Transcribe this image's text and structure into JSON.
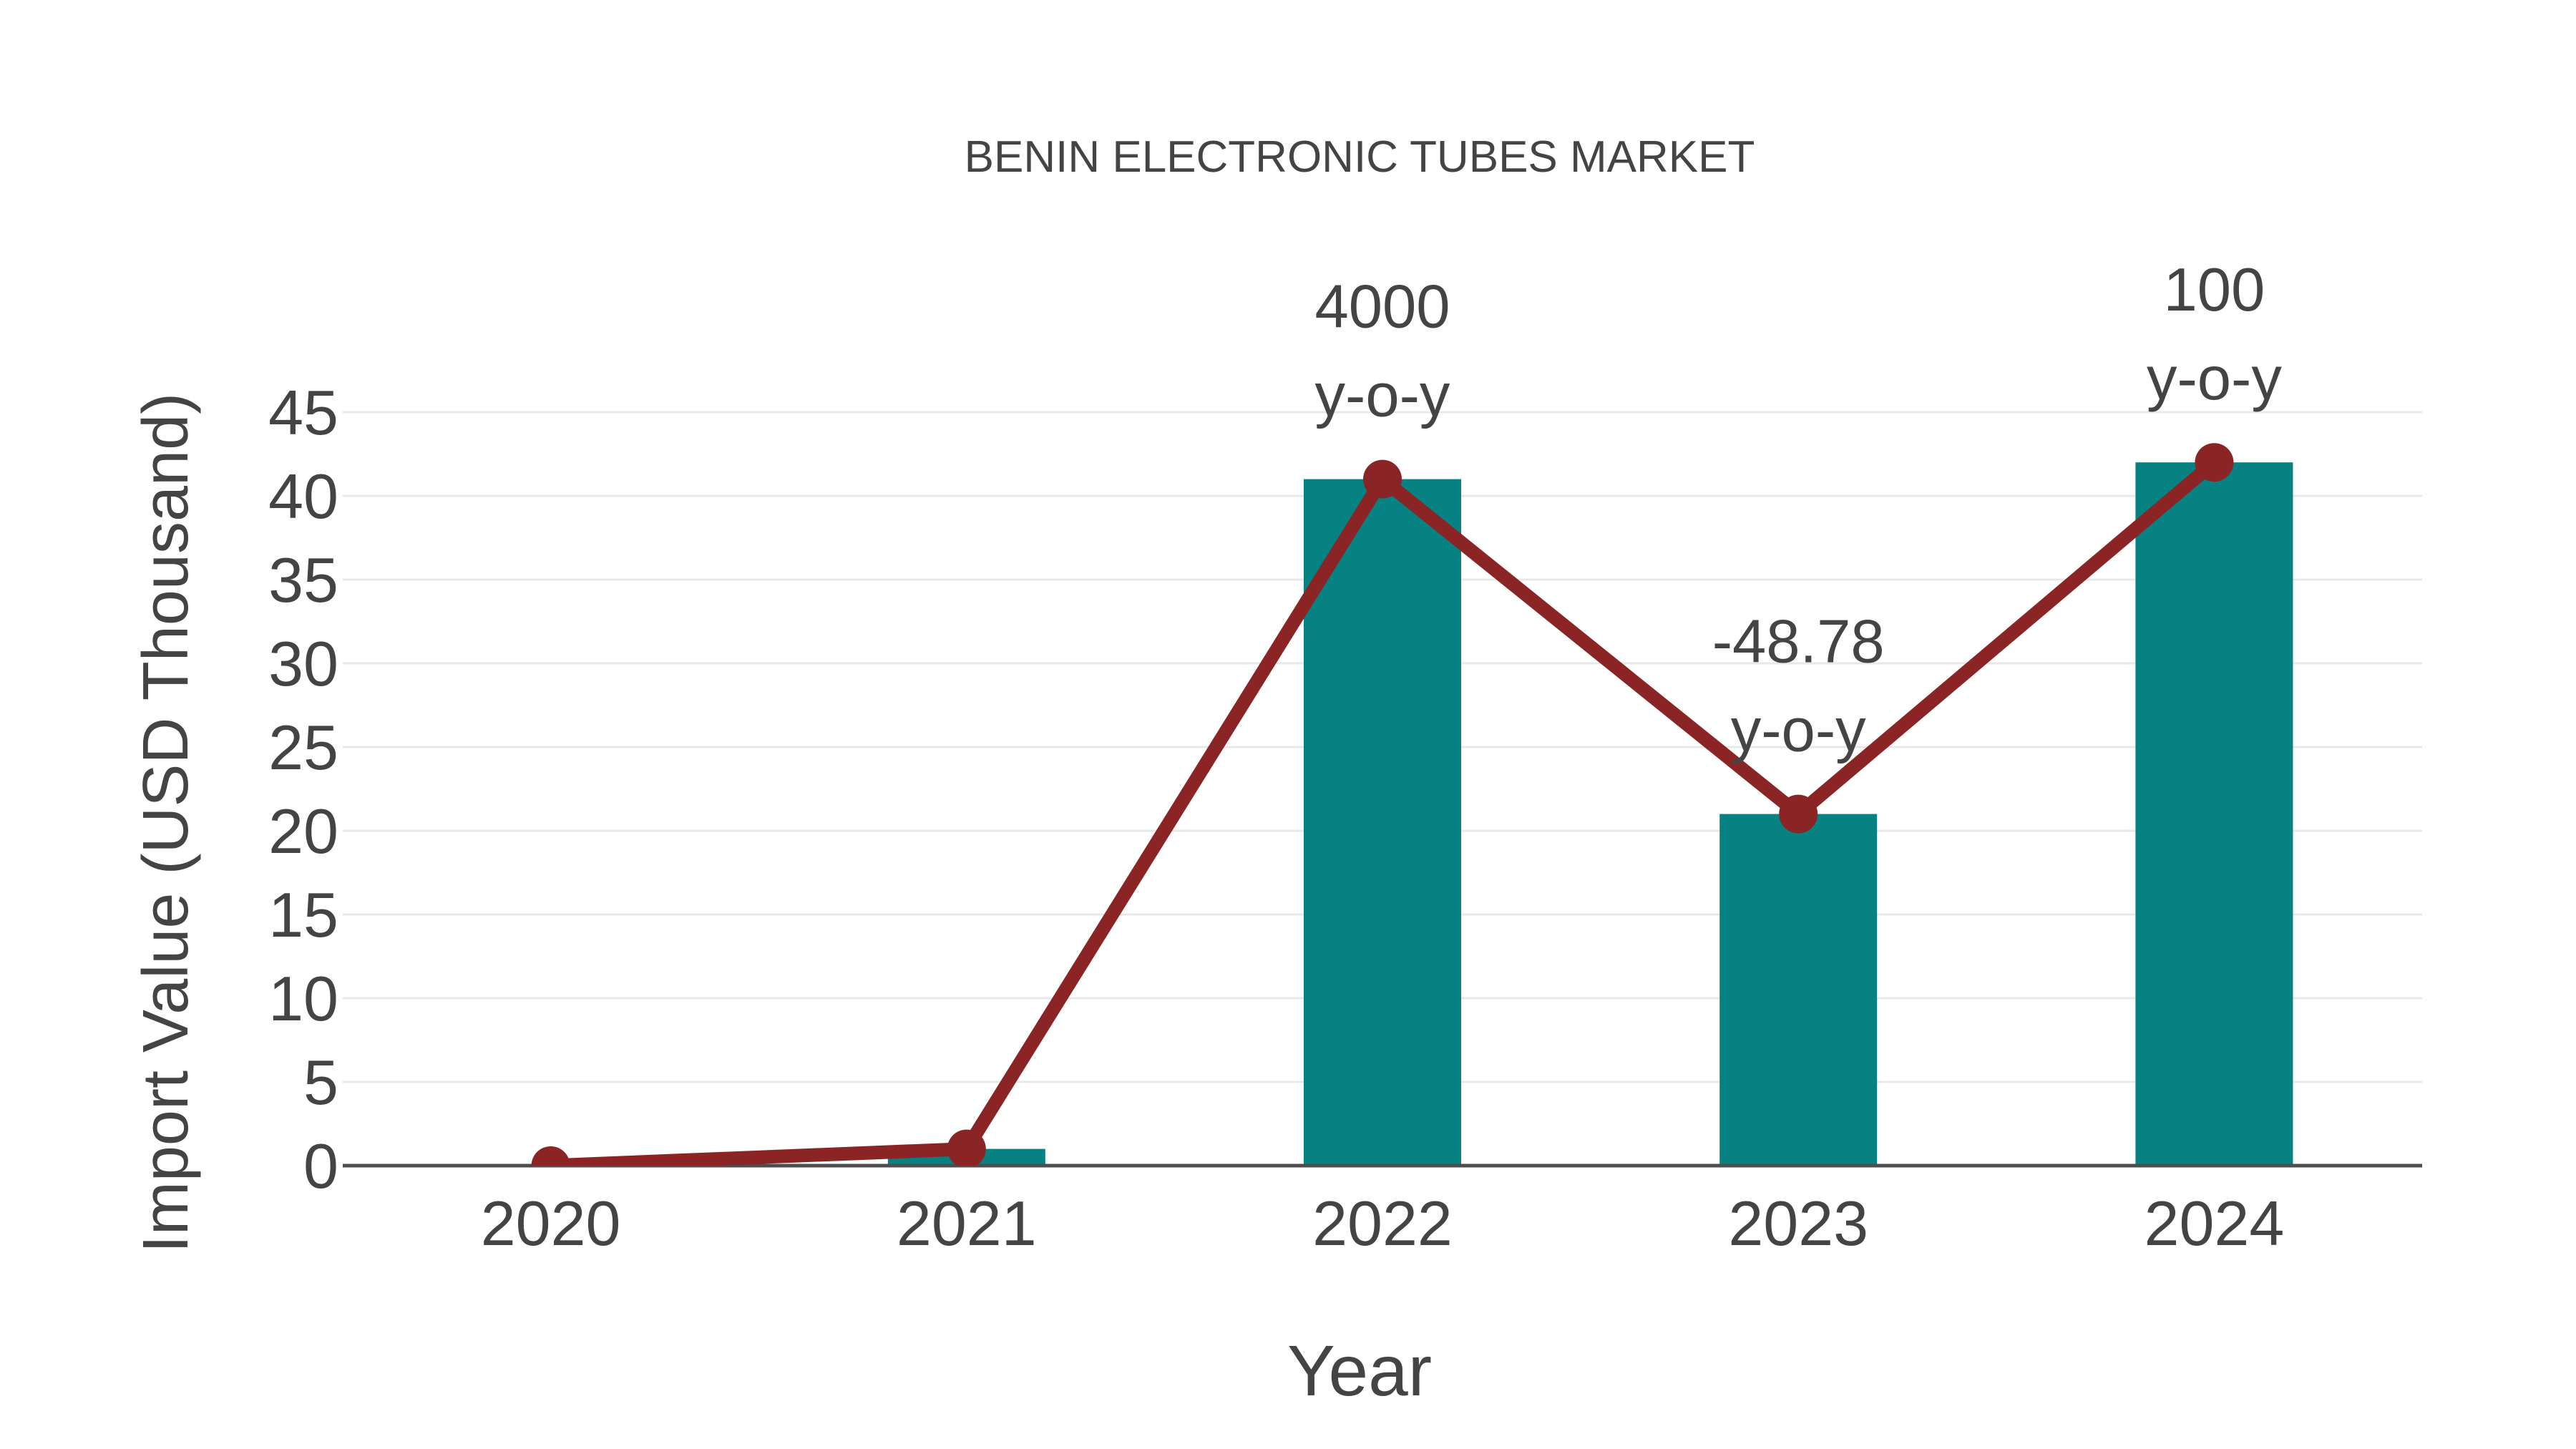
{
  "chart_data": {
    "type": "bar",
    "title": "BENIN ELECTRONIC TUBES MARKET",
    "xlabel": "Year",
    "ylabel": "Import Value (USD Thousand)",
    "categories": [
      "2020",
      "2021",
      "2022",
      "2023",
      "2024"
    ],
    "series": [
      {
        "name": "import-value-bars",
        "type": "bar",
        "values": [
          0,
          1,
          41,
          21,
          42
        ]
      },
      {
        "name": "import-value-line",
        "type": "line",
        "values": [
          0,
          1,
          41,
          21,
          42
        ]
      }
    ],
    "annotations": [
      {
        "category": "2022",
        "line1": "4000",
        "line2": "y-o-y"
      },
      {
        "category": "2023",
        "line1": "-48.78",
        "line2": "y-o-y"
      },
      {
        "category": "2024",
        "line1": "100",
        "line2": "y-o-y"
      }
    ],
    "yticks": [
      0,
      5,
      10,
      15,
      20,
      25,
      30,
      35,
      40,
      45
    ],
    "ylim": [
      0,
      45
    ],
    "grid": true,
    "legend": "none",
    "colors": {
      "bar": "#068282",
      "line": "#8B2424",
      "marker": "#8B2424",
      "text": "#444444",
      "grid": "#E8E8E8",
      "axis": "#4D4D4D",
      "background": "#FFFFFF"
    }
  }
}
